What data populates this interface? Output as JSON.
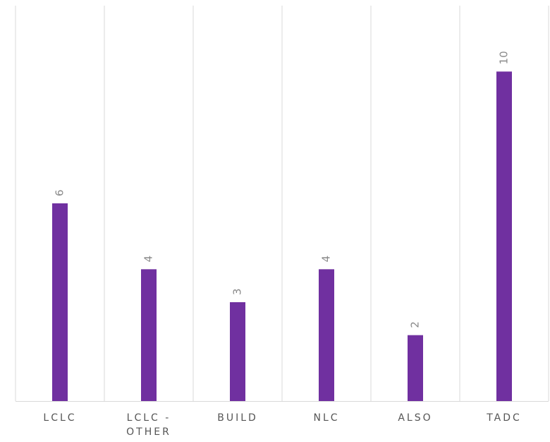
{
  "chart_data": {
    "type": "bar",
    "categories": [
      "LCLC",
      "LCLC - OTHER",
      "BUILD",
      "NLC",
      "ALSO",
      "TADC"
    ],
    "values": [
      6,
      4,
      3,
      4,
      2,
      10
    ],
    "color": "#7030a0",
    "ylim": [
      0,
      12
    ]
  }
}
